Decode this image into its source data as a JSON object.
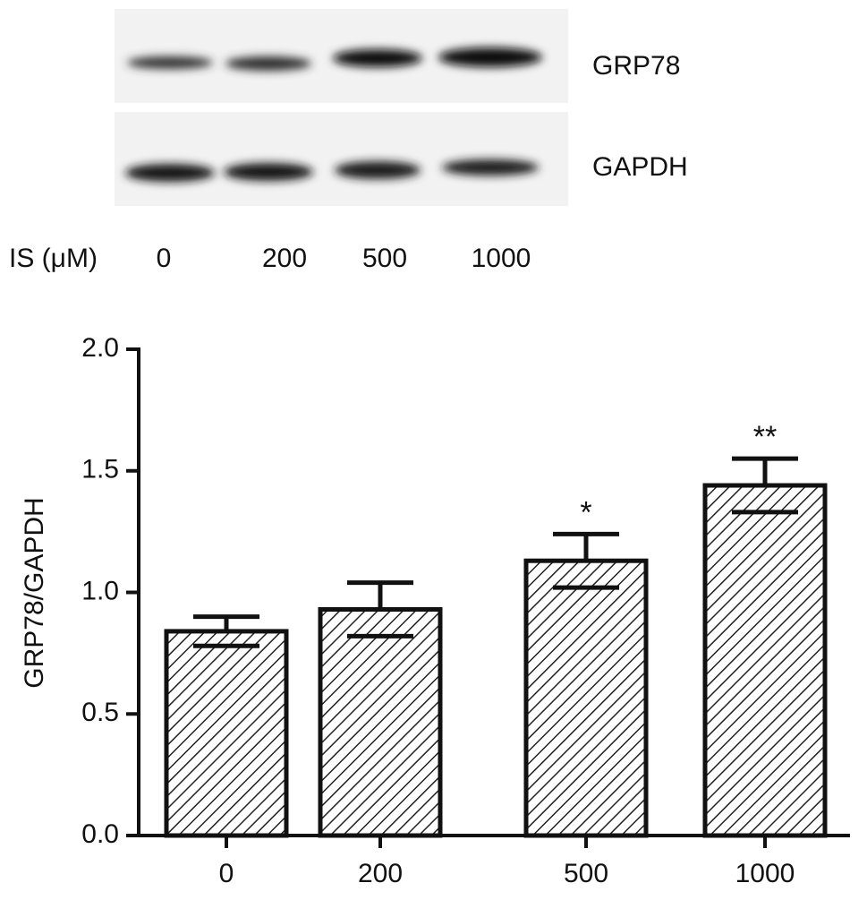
{
  "blot": {
    "rows": [
      "GRP78",
      "GAPDH"
    ],
    "lanes_label": "IS (μM)",
    "lanes": [
      "0",
      "200",
      "500",
      "1000"
    ]
  },
  "chart_data": {
    "type": "bar",
    "ylabel": "GRP78/GAPDH",
    "categories": [
      "0",
      "200",
      "500",
      "1000"
    ],
    "values": [
      0.84,
      0.93,
      1.13,
      1.44
    ],
    "errors": [
      0.06,
      0.11,
      0.11,
      0.11
    ],
    "significance": [
      null,
      null,
      "*",
      "**"
    ],
    "ylim": [
      0,
      2
    ],
    "yticks": [
      {
        "value": 0,
        "label": "0.0"
      },
      {
        "value": 0.5,
        "label": "0.5"
      },
      {
        "value": 1,
        "label": "1.0"
      },
      {
        "value": 1.5,
        "label": "1.5"
      },
      {
        "value": 2,
        "label": "2.0"
      }
    ],
    "color": "#111111",
    "hatch": true,
    "grid": false
  }
}
